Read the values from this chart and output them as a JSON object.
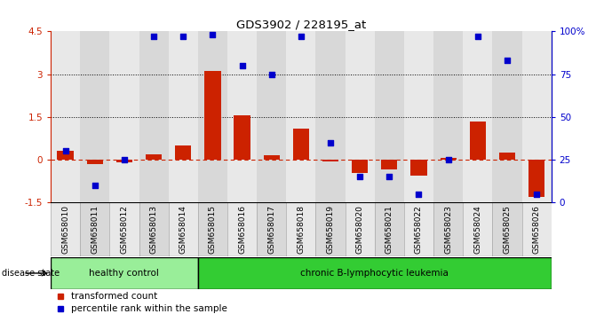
{
  "title": "GDS3902 / 228195_at",
  "samples": [
    "GSM658010",
    "GSM658011",
    "GSM658012",
    "GSM658013",
    "GSM658014",
    "GSM658015",
    "GSM658016",
    "GSM658017",
    "GSM658018",
    "GSM658019",
    "GSM658020",
    "GSM658021",
    "GSM658022",
    "GSM658023",
    "GSM658024",
    "GSM658025",
    "GSM658026"
  ],
  "transformed_count": [
    0.3,
    -0.15,
    -0.08,
    0.2,
    0.5,
    3.1,
    1.55,
    0.15,
    1.1,
    -0.05,
    -0.45,
    -0.35,
    -0.55,
    0.05,
    1.35,
    0.25,
    -1.3
  ],
  "percentile_rank": [
    30,
    10,
    25,
    97,
    97,
    98,
    80,
    75,
    97,
    35,
    15,
    15,
    5,
    25,
    97,
    83,
    5
  ],
  "healthy_count": 5,
  "groups": [
    {
      "label": "healthy control",
      "color": "#99EE99"
    },
    {
      "label": "chronic B-lymphocytic leukemia",
      "color": "#33CC33"
    }
  ],
  "disease_state_label": "disease state",
  "ylim": [
    -1.5,
    4.5
  ],
  "yticks_left": [
    -1.5,
    0,
    1.5,
    3,
    4.5
  ],
  "yticks_right": [
    0,
    25,
    50,
    75,
    100
  ],
  "bar_color": "#CC2200",
  "dot_color": "#0000CC",
  "legend_bar_label": "transformed count",
  "legend_dot_label": "percentile rank within the sample",
  "col_bg_even": "#E8E8E8",
  "col_bg_odd": "#D8D8D8"
}
